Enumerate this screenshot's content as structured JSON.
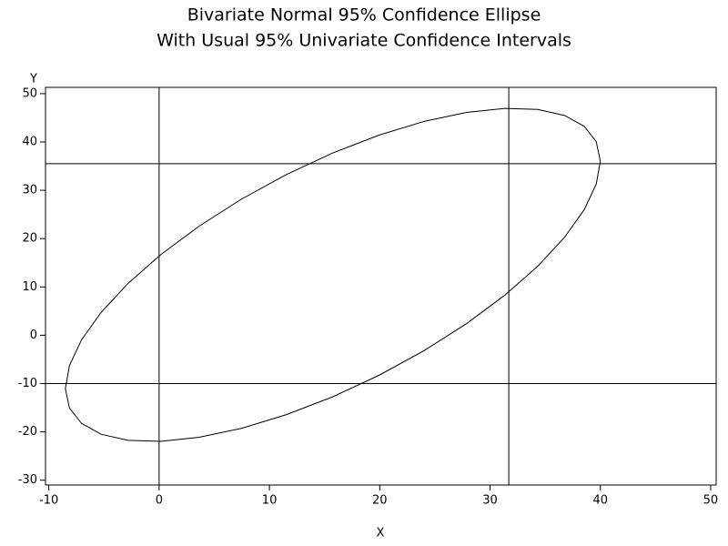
{
  "chart_data": {
    "type": "line",
    "title": "Bivariate Normal 95% Confidence Ellipse",
    "subtitle": "With Usual 95% Univariate Confidence Intervals",
    "x_label": "X",
    "y_label": "Y",
    "x": [
      40.0,
      39.63,
      38.54,
      36.75,
      34.33,
      31.34,
      27.88,
      24.04,
      19.96,
      15.75,
      11.54,
      7.46,
      3.63,
      0.16,
      -2.83,
      -5.25,
      -7.04,
      -8.13,
      -8.5,
      -8.13,
      -7.04,
      -5.25,
      -2.83,
      0.16,
      3.63,
      7.46,
      11.54,
      15.75,
      19.96,
      24.04,
      27.88,
      31.34,
      34.33,
      36.75,
      38.54,
      39.63,
      40.0
    ],
    "values": [
      36.0,
      40.05,
      43.24,
      45.49,
      46.74,
      46.95,
      46.12,
      44.27,
      41.43,
      37.73,
      33.26,
      28.16,
      22.58,
      16.7,
      10.7,
      4.74,
      -0.98,
      -6.29,
      -11.03,
      -15.05,
      -18.24,
      -20.49,
      -21.74,
      -21.95,
      -21.12,
      -19.27,
      -16.43,
      -12.73,
      -8.26,
      -3.16,
      2.42,
      8.3,
      14.3,
      20.26,
      25.98,
      31.29,
      36.0
    ],
    "color": "#000000",
    "reference_lines": {
      "x": [
        0,
        31.7
      ],
      "y": [
        -10,
        35.5
      ]
    },
    "xlim": [
      -10.3,
      50.5
    ],
    "ylim": [
      -31,
      51.3
    ],
    "xticks": [
      -10,
      0,
      10,
      20,
      30,
      40,
      50
    ],
    "yticks": [
      -30,
      -20,
      -10,
      0,
      10,
      20,
      30,
      40,
      50
    ],
    "grid": false
  }
}
